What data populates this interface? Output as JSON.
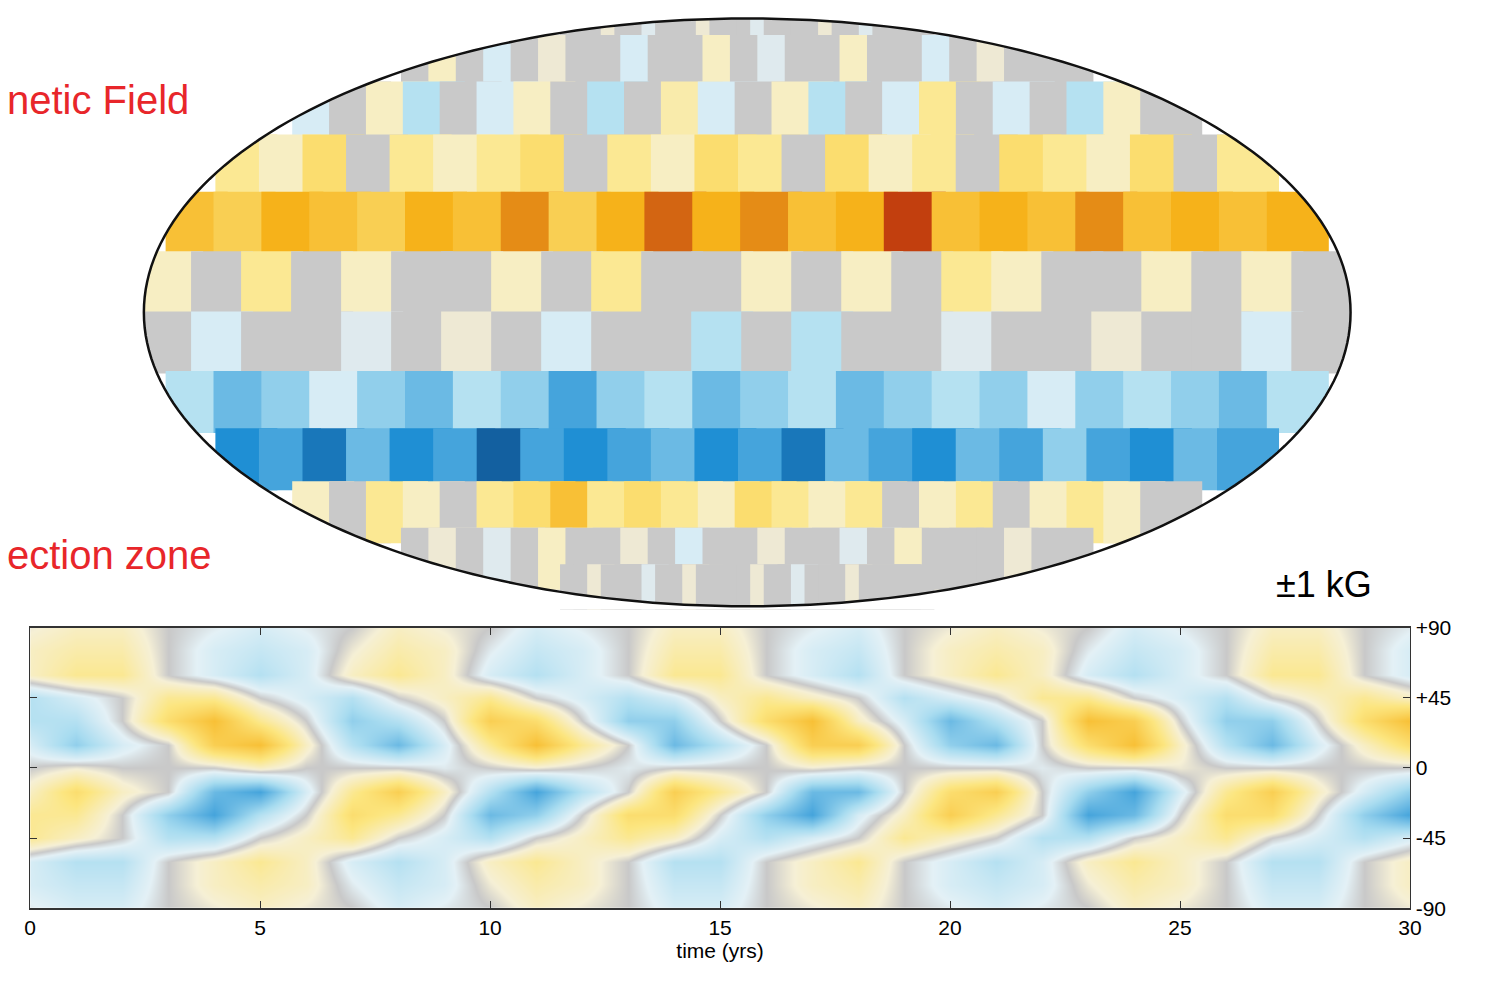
{
  "chart_data": [
    {
      "type": "map",
      "title": "netic Field",
      "zlim": [
        -1,
        1
      ],
      "lon": [
        -172.5,
        -157.5,
        -142.5,
        -127.5,
        -112.5,
        -97.5,
        -82.5,
        -67.5,
        -52.5,
        -37.5,
        -22.5,
        -7.5,
        7.5,
        22.5,
        37.5,
        52.5,
        67.5,
        82.5,
        97.5,
        112.5,
        127.5,
        142.5,
        157.5,
        172.5
      ],
      "lat": [
        82.5,
        67.5,
        52.5,
        37.5,
        22.5,
        7.5,
        -7.5,
        -22.5,
        -37.5,
        -52.5,
        -67.5,
        -82.5
      ],
      "z": [
        [
          0,
          0,
          0,
          0.05,
          0,
          0,
          -0.05,
          0,
          0,
          0,
          0.05,
          0,
          0,
          0,
          -0.05,
          0,
          0,
          0,
          0,
          0.05,
          0,
          0,
          -0.05,
          0
        ],
        [
          0,
          0.1,
          0,
          -0.1,
          0,
          0.05,
          0,
          0,
          -0.1,
          0,
          0,
          0.1,
          0,
          -0.05,
          0,
          0,
          0.1,
          0,
          0,
          -0.1,
          0,
          0.05,
          0,
          0
        ],
        [
          -0.1,
          0,
          0.1,
          -0.2,
          0,
          -0.1,
          0.1,
          0,
          -0.2,
          0,
          0.15,
          -0.1,
          0,
          0.1,
          -0.2,
          0,
          -0.1,
          0.2,
          0,
          -0.1,
          0,
          -0.2,
          0.1,
          0
        ],
        [
          0.2,
          0.1,
          0.3,
          0,
          0.2,
          0.1,
          0.2,
          0.3,
          0,
          0.2,
          0.1,
          0.3,
          0.2,
          0,
          0.3,
          0.1,
          0.2,
          0,
          0.3,
          0.2,
          0.1,
          0.3,
          0,
          0.2
        ],
        [
          0.5,
          0.4,
          0.6,
          0.5,
          0.4,
          0.6,
          0.5,
          0.7,
          0.4,
          0.6,
          0.8,
          0.6,
          0.7,
          0.5,
          0.6,
          0.9,
          0.5,
          0.6,
          0.5,
          0.7,
          0.5,
          0.6,
          0.5,
          0.6
        ],
        [
          0.1,
          0,
          0.2,
          0,
          0.1,
          0,
          0,
          0.1,
          0,
          0.2,
          0,
          0,
          0.1,
          0,
          0.1,
          0,
          0.2,
          0.1,
          0,
          0,
          0.1,
          0,
          0.1,
          0
        ],
        [
          0,
          -0.1,
          0,
          0,
          -0.05,
          0,
          0.05,
          0,
          -0.1,
          0,
          0,
          -0.2,
          0,
          -0.2,
          0,
          0,
          -0.05,
          0,
          0,
          0.05,
          0,
          0,
          -0.1,
          0
        ],
        [
          -0.2,
          -0.4,
          -0.3,
          -0.1,
          -0.3,
          -0.4,
          -0.2,
          -0.3,
          -0.5,
          -0.3,
          -0.2,
          -0.4,
          -0.3,
          -0.2,
          -0.4,
          -0.3,
          -0.2,
          -0.3,
          -0.1,
          -0.3,
          -0.2,
          -0.3,
          -0.4,
          -0.2
        ],
        [
          -0.6,
          -0.5,
          -0.7,
          -0.4,
          -0.6,
          -0.5,
          -0.8,
          -0.5,
          -0.6,
          -0.5,
          -0.4,
          -0.6,
          -0.5,
          -0.7,
          -0.4,
          -0.5,
          -0.6,
          -0.4,
          -0.5,
          -0.3,
          -0.5,
          -0.6,
          -0.4,
          -0.5
        ],
        [
          0.1,
          0,
          0.2,
          0.1,
          0,
          0.2,
          0.3,
          0.5,
          0.2,
          0.3,
          0.2,
          0.1,
          0.3,
          0.2,
          0.1,
          0.2,
          0,
          0.1,
          0.2,
          0,
          0.1,
          0.2,
          0.1,
          0
        ],
        [
          0,
          0.05,
          0,
          -0.05,
          0,
          0.1,
          0,
          0,
          0.05,
          0,
          -0.1,
          0,
          0,
          0.05,
          0,
          0,
          -0.05,
          0,
          0.1,
          0,
          0,
          0,
          0.05,
          0
        ],
        [
          0,
          0,
          0.05,
          0,
          0,
          0,
          -0.05,
          0,
          0,
          0.05,
          0,
          0,
          0,
          0,
          0.05,
          0,
          0,
          -0.05,
          0,
          0,
          0,
          0.05,
          0,
          0
        ]
      ]
    },
    {
      "type": "heatmap",
      "title": "ection zone",
      "annotations": [
        "±1 kG"
      ],
      "xlabel": "time (yrs)",
      "xlim": [
        0,
        30
      ],
      "ylim": [
        -90,
        90
      ],
      "xticks": [
        0,
        5,
        10,
        15,
        20,
        25,
        30
      ],
      "yticks": [
        {
          "value": 90,
          "label": "+90"
        },
        {
          "value": 45,
          "label": "+45"
        },
        0,
        -45,
        -90
      ],
      "zlim": [
        -1,
        1
      ],
      "x": [
        0,
        1,
        2,
        3,
        4,
        5,
        6,
        7,
        8,
        9,
        10,
        11,
        12,
        13,
        14,
        15,
        16,
        17,
        18,
        19,
        20,
        21,
        22,
        23,
        24,
        25,
        26,
        27,
        28,
        29,
        30
      ],
      "y": [
        90,
        75,
        60,
        45,
        30,
        15,
        0,
        -15,
        -30,
        -45,
        -60,
        -75,
        -90
      ],
      "z": [
        [
          0.05,
          0.1,
          0.1,
          0,
          -0.05,
          -0.1,
          -0.05,
          0,
          0.1,
          0.05,
          0,
          -0.1,
          -0.05,
          0,
          0.1,
          0.1,
          0,
          -0.05,
          -0.1,
          0,
          0.05,
          0.1,
          0.05,
          0,
          -0.1,
          -0.05,
          0,
          0.1,
          0.1,
          0,
          -0.05
        ],
        [
          0.1,
          0.15,
          0.15,
          0,
          -0.1,
          -0.15,
          -0.1,
          0.05,
          0.15,
          0.1,
          -0.05,
          -0.15,
          -0.1,
          0,
          0.15,
          0.15,
          0,
          -0.1,
          -0.15,
          0,
          0.1,
          0.15,
          0.1,
          -0.05,
          -0.15,
          -0.1,
          0,
          0.15,
          0.15,
          0,
          -0.1
        ],
        [
          0.1,
          0.2,
          0.2,
          0,
          -0.1,
          -0.2,
          -0.1,
          0.1,
          0.2,
          0.1,
          -0.1,
          -0.2,
          -0.1,
          0,
          0.2,
          0.2,
          0,
          -0.1,
          -0.2,
          0,
          0.1,
          0.2,
          0.1,
          -0.1,
          -0.2,
          -0.1,
          0,
          0.2,
          0.2,
          0,
          -0.1
        ],
        [
          -0.2,
          -0.1,
          0,
          0.2,
          0.2,
          0,
          -0.1,
          -0.2,
          0,
          0.1,
          0.2,
          0,
          -0.1,
          -0.2,
          -0.1,
          0.1,
          0.2,
          0.1,
          0,
          -0.2,
          -0.1,
          0,
          0.2,
          0.2,
          0,
          -0.1,
          -0.2,
          0,
          0.1,
          0.2,
          0.1
        ],
        [
          -0.2,
          -0.2,
          0,
          0.3,
          0.5,
          0.2,
          0,
          -0.3,
          -0.2,
          0,
          0.4,
          0.3,
          0,
          -0.3,
          -0.3,
          0,
          0.3,
          0.5,
          0.1,
          -0.1,
          -0.4,
          -0.2,
          0,
          0.5,
          0.4,
          0,
          -0.3,
          -0.3,
          0,
          0.3,
          0.5
        ],
        [
          -0.1,
          -0.3,
          -0.1,
          0,
          0.4,
          0.5,
          0.1,
          -0.2,
          -0.4,
          -0.1,
          0.2,
          0.5,
          0.2,
          0,
          -0.4,
          -0.2,
          0,
          0.4,
          0.4,
          0,
          -0.3,
          -0.4,
          0,
          0.3,
          0.5,
          0.1,
          -0.2,
          -0.4,
          -0.1,
          0.1,
          0.3
        ],
        [
          0,
          0.05,
          0,
          0,
          0,
          0.1,
          0,
          0,
          0,
          -0.05,
          0,
          0.05,
          0,
          -0.05,
          0,
          0,
          0,
          0.05,
          0,
          0,
          0,
          0,
          -0.05,
          0,
          0,
          0.05,
          0,
          0,
          0,
          0,
          0
        ],
        [
          0.1,
          0.3,
          0.1,
          0,
          -0.4,
          -0.5,
          -0.1,
          0.2,
          0.4,
          0.1,
          -0.2,
          -0.5,
          -0.2,
          0,
          0.4,
          0.2,
          0,
          -0.4,
          -0.4,
          0,
          0.3,
          0.4,
          0,
          -0.3,
          -0.5,
          -0.1,
          0.2,
          0.4,
          0.1,
          -0.1,
          -0.3
        ],
        [
          0.2,
          0.2,
          0,
          -0.3,
          -0.5,
          -0.2,
          0,
          0.3,
          0.2,
          0,
          -0.4,
          -0.3,
          0,
          0.3,
          0.3,
          0,
          -0.3,
          -0.5,
          -0.1,
          0.1,
          0.4,
          0.2,
          0,
          -0.5,
          -0.4,
          0,
          0.3,
          0.3,
          0,
          -0.3,
          -0.5
        ],
        [
          0.2,
          0.1,
          0,
          -0.2,
          -0.2,
          0,
          0.1,
          0.2,
          0,
          -0.1,
          -0.2,
          0,
          0.1,
          0.2,
          0.1,
          -0.1,
          -0.2,
          -0.1,
          0,
          0.2,
          0.1,
          0,
          -0.2,
          -0.2,
          0,
          0.1,
          0.2,
          0,
          -0.1,
          -0.2,
          -0.1
        ],
        [
          -0.1,
          -0.2,
          -0.2,
          0,
          0.1,
          0.2,
          0.1,
          -0.1,
          -0.2,
          -0.1,
          0.1,
          0.2,
          0.1,
          0,
          -0.2,
          -0.2,
          0,
          0.1,
          0.2,
          0,
          -0.1,
          -0.2,
          -0.1,
          0.1,
          0.2,
          0.1,
          0,
          -0.2,
          -0.2,
          0,
          0.1
        ],
        [
          -0.1,
          -0.15,
          -0.15,
          0,
          0.1,
          0.15,
          0.1,
          -0.05,
          -0.15,
          -0.1,
          0.05,
          0.15,
          0.1,
          0,
          -0.15,
          -0.15,
          0,
          0.1,
          0.15,
          0,
          -0.1,
          -0.15,
          -0.1,
          0.05,
          0.15,
          0.1,
          0,
          -0.15,
          -0.15,
          0,
          0.1
        ],
        [
          -0.05,
          -0.1,
          -0.1,
          0,
          0.05,
          0.1,
          0.05,
          0,
          -0.1,
          -0.05,
          0,
          0.1,
          0.05,
          0,
          -0.1,
          -0.1,
          0,
          0.05,
          0.1,
          0,
          -0.05,
          -0.1,
          -0.05,
          0,
          0.1,
          0.05,
          0,
          -0.1,
          -0.1,
          0,
          0.05
        ]
      ]
    }
  ]
}
